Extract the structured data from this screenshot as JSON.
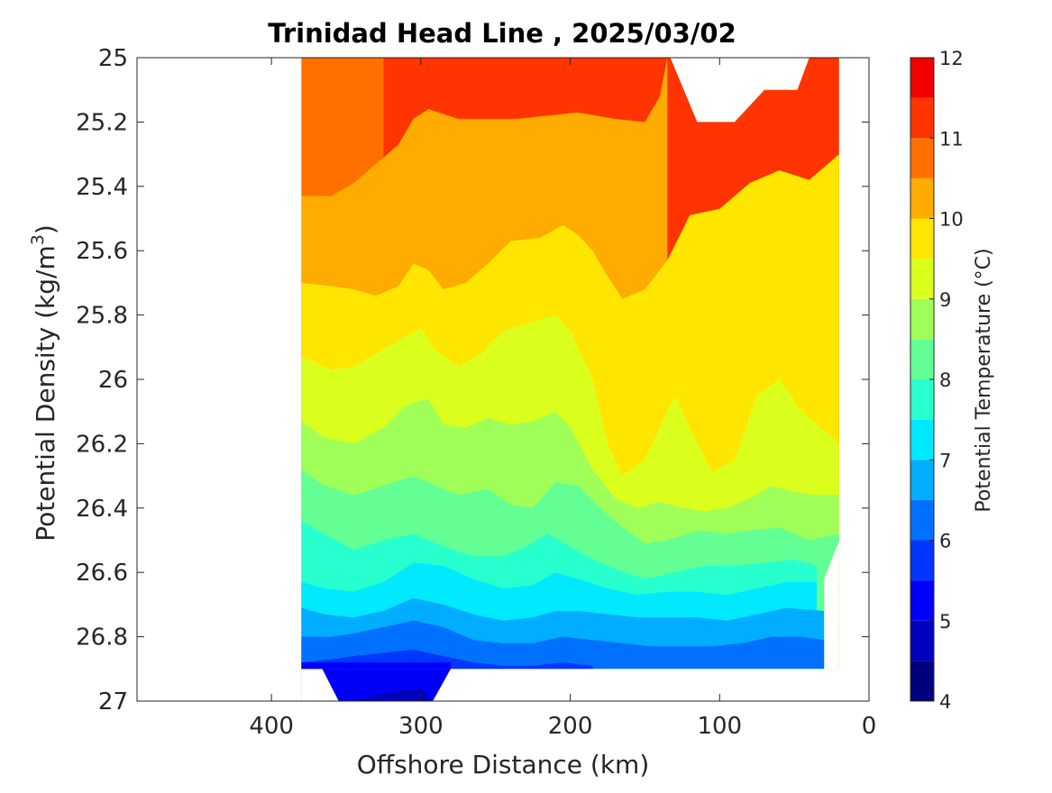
{
  "chart_data": {
    "type": "contour",
    "title": "Trinidad Head Line , 2025/03/02",
    "xlabel": "Offshore Distance (km)",
    "ylabel_main": "Potential Density (kg/m",
    "ylabel_sup": "3",
    "ylabel_end": ")",
    "x_axis": {
      "range": [
        490,
        0
      ],
      "reversed": true,
      "ticks": [
        400,
        300,
        200,
        100,
        0
      ],
      "tick_labels": [
        "400",
        "300",
        "200",
        "100",
        "0"
      ]
    },
    "y_axis": {
      "range": [
        25.0,
        27.0
      ],
      "inverted": true,
      "ticks": [
        25.0,
        25.2,
        25.4,
        25.6,
        25.8,
        26.0,
        26.2,
        26.4,
        26.6,
        26.8,
        27.0
      ],
      "tick_labels": [
        "25",
        "25.2",
        "25.4",
        "25.6",
        "25.8",
        "26",
        "26.2",
        "26.4",
        "26.6",
        "26.8",
        "27"
      ]
    },
    "colorbar": {
      "label": "Potential Temperature (°C)",
      "range": [
        4,
        12
      ],
      "ticks": [
        4,
        5,
        6,
        7,
        8,
        9,
        10,
        11,
        12
      ],
      "tick_labels": [
        "4",
        "5",
        "6",
        "7",
        "8",
        "9",
        "10",
        "11",
        "12"
      ],
      "levels": [
        4,
        4.5,
        5,
        5.5,
        6,
        6.5,
        7,
        7.5,
        8,
        8.5,
        9,
        9.5,
        10,
        10.5,
        11,
        11.5,
        12
      ],
      "colors": [
        "#00007f",
        "#0000bd",
        "#0000fa",
        "#0036ff",
        "#0071ff",
        "#00adff",
        "#00e9ff",
        "#28ffcf",
        "#63ff94",
        "#9fff58",
        "#dbff1c",
        "#ffe600",
        "#ffab00",
        "#ff7000",
        "#ff3400",
        "#f20000",
        "#b50000"
      ]
    },
    "data_extent": {
      "x_min": 20,
      "x_max": 380,
      "y_min": 25.0,
      "y_max": 26.9
    },
    "isotherms": [
      {
        "temperature": 11.0,
        "points": [
          [
            380,
            25.0
          ],
          [
            325,
            25.0
          ]
        ]
      },
      {
        "temperature": 10.5,
        "points": [
          [
            380,
            25.43
          ],
          [
            360,
            25.43
          ],
          [
            345,
            25.39
          ],
          [
            330,
            25.33
          ],
          [
            315,
            25.27
          ],
          [
            305,
            25.19
          ],
          [
            295,
            25.16
          ],
          [
            275,
            25.19
          ],
          [
            255,
            25.19
          ],
          [
            235,
            25.19
          ],
          [
            215,
            25.18
          ],
          [
            195,
            25.17
          ],
          [
            170,
            25.19
          ],
          [
            150,
            25.2
          ],
          [
            140,
            25.12
          ],
          [
            135,
            25.0
          ]
        ]
      },
      {
        "temperature": 10.0,
        "points": [
          [
            380,
            25.7
          ],
          [
            360,
            25.71
          ],
          [
            345,
            25.72
          ],
          [
            330,
            25.74
          ],
          [
            315,
            25.71
          ],
          [
            305,
            25.64
          ],
          [
            295,
            25.66
          ],
          [
            285,
            25.72
          ],
          [
            270,
            25.7
          ],
          [
            255,
            25.64
          ],
          [
            240,
            25.57
          ],
          [
            220,
            25.56
          ],
          [
            205,
            25.52
          ],
          [
            195,
            25.55
          ],
          [
            185,
            25.6
          ],
          [
            175,
            25.68
          ],
          [
            165,
            25.75
          ],
          [
            150,
            25.72
          ],
          [
            135,
            25.63
          ],
          [
            120,
            25.49
          ],
          [
            100,
            25.47
          ],
          [
            80,
            25.39
          ],
          [
            60,
            25.35
          ],
          [
            40,
            25.38
          ],
          [
            20,
            25.3
          ]
        ]
      },
      {
        "temperature": 9.5,
        "points": [
          [
            380,
            25.93
          ],
          [
            360,
            25.97
          ],
          [
            345,
            25.96
          ],
          [
            330,
            25.92
          ],
          [
            315,
            25.88
          ],
          [
            300,
            25.84
          ],
          [
            290,
            25.91
          ],
          [
            275,
            25.96
          ],
          [
            260,
            25.92
          ],
          [
            245,
            25.85
          ],
          [
            225,
            25.82
          ],
          [
            210,
            25.8
          ],
          [
            200,
            25.85
          ],
          [
            185,
            26.0
          ],
          [
            175,
            26.2
          ],
          [
            165,
            26.3
          ],
          [
            150,
            26.25
          ],
          [
            140,
            26.15
          ],
          [
            130,
            26.05
          ],
          [
            120,
            26.15
          ],
          [
            105,
            26.29
          ],
          [
            90,
            26.25
          ],
          [
            75,
            26.05
          ],
          [
            60,
            26.0
          ],
          [
            45,
            26.1
          ],
          [
            20,
            26.2
          ]
        ]
      },
      {
        "temperature": 9.0,
        "points": [
          [
            380,
            26.13
          ],
          [
            365,
            26.18
          ],
          [
            345,
            26.2
          ],
          [
            325,
            26.15
          ],
          [
            310,
            26.08
          ],
          [
            295,
            26.06
          ],
          [
            285,
            26.14
          ],
          [
            270,
            26.15
          ],
          [
            255,
            26.12
          ],
          [
            240,
            26.14
          ],
          [
            225,
            26.13
          ],
          [
            210,
            26.1
          ],
          [
            200,
            26.15
          ],
          [
            185,
            26.28
          ],
          [
            170,
            26.37
          ],
          [
            155,
            26.4
          ],
          [
            140,
            26.38
          ],
          [
            125,
            26.4
          ],
          [
            110,
            26.41
          ],
          [
            95,
            26.4
          ],
          [
            80,
            26.37
          ],
          [
            65,
            26.33
          ],
          [
            50,
            26.35
          ],
          [
            35,
            26.36
          ],
          [
            20,
            26.36
          ]
        ]
      },
      {
        "temperature": 8.5,
        "points": [
          [
            380,
            26.28
          ],
          [
            365,
            26.33
          ],
          [
            345,
            26.36
          ],
          [
            325,
            26.33
          ],
          [
            305,
            26.3
          ],
          [
            290,
            26.33
          ],
          [
            275,
            26.36
          ],
          [
            255,
            26.34
          ],
          [
            240,
            26.39
          ],
          [
            225,
            26.4
          ],
          [
            210,
            26.32
          ],
          [
            195,
            26.33
          ],
          [
            180,
            26.4
          ],
          [
            165,
            26.46
          ],
          [
            150,
            26.51
          ],
          [
            135,
            26.5
          ],
          [
            115,
            26.47
          ],
          [
            95,
            26.48
          ],
          [
            80,
            26.47
          ],
          [
            60,
            26.46
          ],
          [
            40,
            26.5
          ],
          [
            20,
            26.48
          ]
        ]
      },
      {
        "temperature": 8.0,
        "points": [
          [
            380,
            26.44
          ],
          [
            365,
            26.48
          ],
          [
            345,
            26.53
          ],
          [
            325,
            26.5
          ],
          [
            305,
            26.48
          ],
          [
            285,
            26.52
          ],
          [
            265,
            26.55
          ],
          [
            245,
            26.55
          ],
          [
            230,
            26.52
          ],
          [
            215,
            26.48
          ],
          [
            200,
            26.52
          ],
          [
            185,
            26.56
          ],
          [
            170,
            26.59
          ],
          [
            150,
            26.62
          ],
          [
            130,
            26.6
          ],
          [
            110,
            26.58
          ],
          [
            90,
            26.58
          ],
          [
            70,
            26.57
          ],
          [
            50,
            26.56
          ],
          [
            35,
            26.58
          ]
        ]
      },
      {
        "temperature": 7.5,
        "points": [
          [
            380,
            26.63
          ],
          [
            365,
            26.65
          ],
          [
            345,
            26.66
          ],
          [
            325,
            26.63
          ],
          [
            305,
            26.57
          ],
          [
            285,
            26.58
          ],
          [
            265,
            26.62
          ],
          [
            245,
            26.65
          ],
          [
            225,
            26.64
          ],
          [
            210,
            26.6
          ],
          [
            195,
            26.62
          ],
          [
            175,
            26.65
          ],
          [
            155,
            26.67
          ],
          [
            135,
            26.66
          ],
          [
            115,
            26.66
          ],
          [
            95,
            26.67
          ],
          [
            75,
            26.65
          ],
          [
            55,
            26.63
          ],
          [
            35,
            26.63
          ]
        ]
      },
      {
        "temperature": 7.0,
        "points": [
          [
            380,
            26.71
          ],
          [
            365,
            26.73
          ],
          [
            345,
            26.74
          ],
          [
            325,
            26.72
          ],
          [
            305,
            26.68
          ],
          [
            285,
            26.7
          ],
          [
            265,
            26.73
          ],
          [
            245,
            26.75
          ],
          [
            225,
            26.74
          ],
          [
            210,
            26.72
          ],
          [
            195,
            26.72
          ],
          [
            175,
            26.73
          ],
          [
            155,
            26.74
          ],
          [
            135,
            26.74
          ],
          [
            115,
            26.74
          ],
          [
            95,
            26.75
          ],
          [
            75,
            26.73
          ],
          [
            55,
            26.71
          ],
          [
            30,
            26.72
          ]
        ]
      },
      {
        "temperature": 6.5,
        "points": [
          [
            380,
            26.8
          ],
          [
            360,
            26.8
          ],
          [
            345,
            26.79
          ],
          [
            325,
            26.77
          ],
          [
            305,
            26.75
          ],
          [
            285,
            26.77
          ],
          [
            265,
            26.81
          ],
          [
            245,
            26.82
          ],
          [
            225,
            26.82
          ],
          [
            205,
            26.8
          ],
          [
            185,
            26.81
          ],
          [
            165,
            26.82
          ],
          [
            145,
            26.83
          ],
          [
            125,
            26.83
          ],
          [
            105,
            26.83
          ],
          [
            85,
            26.82
          ],
          [
            65,
            26.8
          ],
          [
            45,
            26.8
          ],
          [
            30,
            26.81
          ]
        ]
      },
      {
        "temperature": 6.0,
        "points": [
          [
            380,
            26.88
          ],
          [
            360,
            26.87
          ],
          [
            345,
            26.86
          ],
          [
            325,
            26.85
          ],
          [
            305,
            26.84
          ],
          [
            285,
            26.86
          ],
          [
            265,
            26.88
          ],
          [
            245,
            26.89
          ],
          [
            225,
            26.89
          ],
          [
            205,
            26.88
          ],
          [
            185,
            26.89
          ]
        ]
      },
      {
        "temperature": 5.5,
        "points": [
          [
            360,
            26.98
          ],
          [
            340,
            26.97
          ],
          [
            320,
            26.96
          ],
          [
            300,
            26.95
          ],
          [
            290,
            26.97
          ]
        ]
      }
    ]
  }
}
